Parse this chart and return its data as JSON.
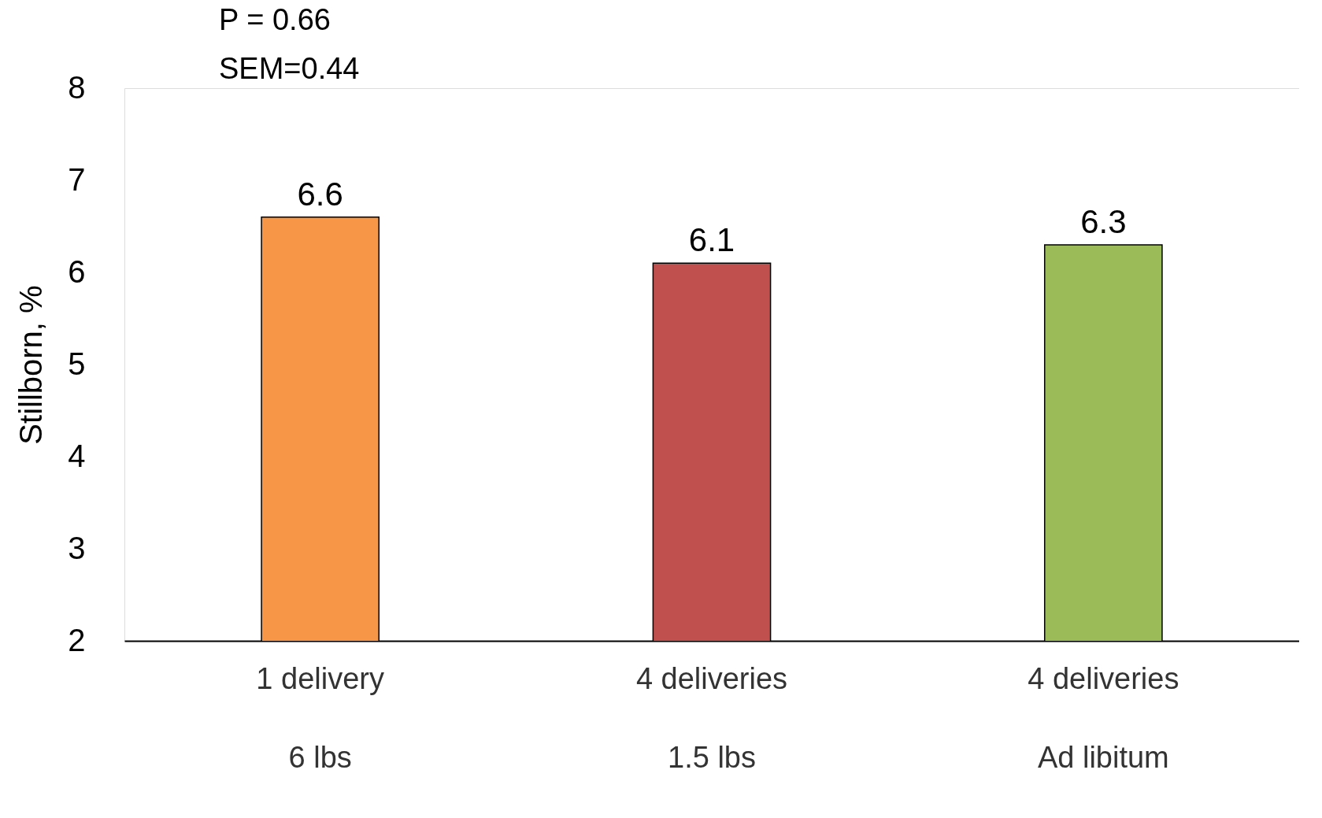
{
  "chart_data": {
    "type": "bar",
    "ylabel": "Stillborn, %",
    "categories": [
      "1 delivery\n6 lbs",
      "4 deliveries\n1.5 lbs",
      "4 deliveries\nAd libitum"
    ],
    "values": [
      6.6,
      6.1,
      6.3
    ],
    "colors": [
      "#f79646",
      "#c0504d",
      "#9bbb59"
    ],
    "ylim": [
      2,
      8
    ],
    "yticks": [
      2,
      3,
      4,
      5,
      6,
      7,
      8
    ],
    "grid": false,
    "data_labels": true,
    "annotations": [
      "P = 0.66",
      "SEM=0.44"
    ]
  }
}
